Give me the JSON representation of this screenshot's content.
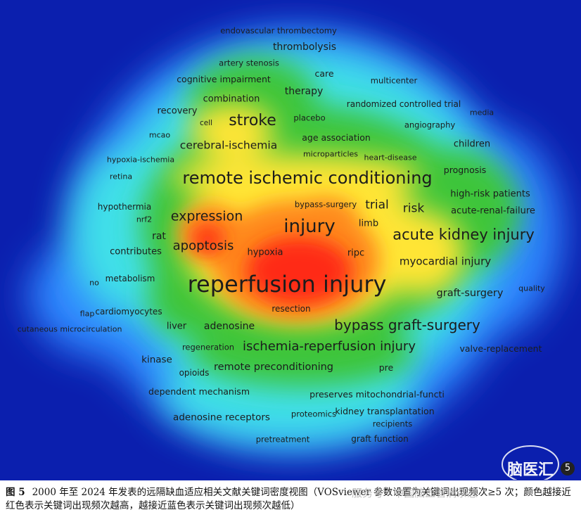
{
  "figure": {
    "caption_label": "图 5",
    "caption_text": "2000 年至 2024 年发表的远隔缺血适应相关文献关键词密度视图（VOSviewer 参数设置为关键词出现频次≥5 次；颜色越接近红色表示关键词出现频次越高，越接近蓝色表示关键词出现频次越低）",
    "watermark_text": "脑医汇",
    "watermark_badge": "5",
    "source_tag": "服务号 · 中国脑血管病杂志"
  },
  "colors": {
    "background": "#1b2fc0",
    "low": "#0b1fae",
    "mid_blue": "#2e86ff",
    "cyan": "#3fe0e8",
    "green": "#3dc53a",
    "yellow": "#ffe536",
    "orange": "#ff8a1a",
    "red": "#ff2a12",
    "label": "#1c1c1c"
  },
  "keywords": [
    {
      "text": "endovascular thrombectomy"
    },
    {
      "text": "thrombolysis"
    },
    {
      "text": "artery stenosis"
    },
    {
      "text": "care"
    },
    {
      "text": "cognitive impairment"
    },
    {
      "text": "multicenter"
    },
    {
      "text": "therapy"
    },
    {
      "text": "combination"
    },
    {
      "text": "randomized controlled trial"
    },
    {
      "text": "recovery"
    },
    {
      "text": "media"
    },
    {
      "text": "stroke"
    },
    {
      "text": "placebo"
    },
    {
      "text": "cell"
    },
    {
      "text": "angiography"
    },
    {
      "text": "mcao"
    },
    {
      "text": "age association"
    },
    {
      "text": "cerebral-ischemia"
    },
    {
      "text": "children"
    },
    {
      "text": "microparticles"
    },
    {
      "text": "heart-disease"
    },
    {
      "text": "hypoxia-ischemia"
    },
    {
      "text": "prognosis"
    },
    {
      "text": "retina"
    },
    {
      "text": "remote ischemic conditioning"
    },
    {
      "text": "high-risk patients"
    },
    {
      "text": "hypothermia"
    },
    {
      "text": "bypass-surgery"
    },
    {
      "text": "trial"
    },
    {
      "text": "risk"
    },
    {
      "text": "acute-renal-failure"
    },
    {
      "text": "nrf2"
    },
    {
      "text": "expression"
    },
    {
      "text": "limb"
    },
    {
      "text": "injury"
    },
    {
      "text": "rat"
    },
    {
      "text": "acute kidney injury"
    },
    {
      "text": "apoptosis"
    },
    {
      "text": "contributes"
    },
    {
      "text": "hypoxia"
    },
    {
      "text": "ripc"
    },
    {
      "text": "myocardial injury"
    },
    {
      "text": "metabolism"
    },
    {
      "text": "no"
    },
    {
      "text": "reperfusion injury"
    },
    {
      "text": "quality"
    },
    {
      "text": "graft-surgery"
    },
    {
      "text": "resection"
    },
    {
      "text": "flap"
    },
    {
      "text": "cardiomyocytes"
    },
    {
      "text": "liver"
    },
    {
      "text": "adenosine"
    },
    {
      "text": "bypass graft-surgery"
    },
    {
      "text": "cutaneous microcirculation"
    },
    {
      "text": "regeneration"
    },
    {
      "text": "ischemia-reperfusion injury"
    },
    {
      "text": "valve-replacement"
    },
    {
      "text": "kinase"
    },
    {
      "text": "remote preconditioning"
    },
    {
      "text": "pre"
    },
    {
      "text": "opioids"
    },
    {
      "text": "dependent mechanism"
    },
    {
      "text": "preserves mitochondrial-functi"
    },
    {
      "text": "proteomics"
    },
    {
      "text": "kidney transplantation"
    },
    {
      "text": "adenosine receptors"
    },
    {
      "text": "recipients"
    },
    {
      "text": "pretreatment"
    },
    {
      "text": "graft function"
    }
  ]
}
